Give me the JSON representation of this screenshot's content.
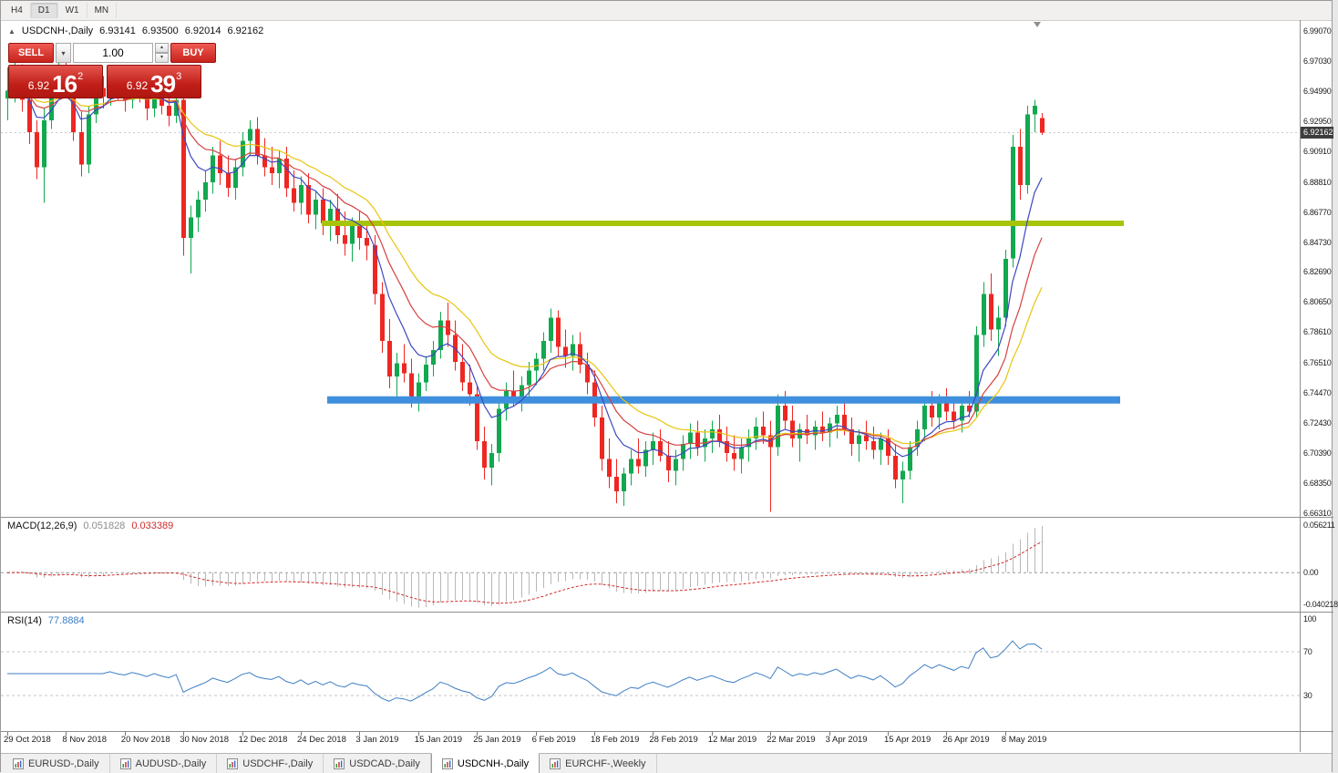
{
  "toolbar": {
    "periods": [
      {
        "label": "H4",
        "active": false
      },
      {
        "label": "D1",
        "active": true
      },
      {
        "label": "W1",
        "active": false
      },
      {
        "label": "MN",
        "active": false
      }
    ]
  },
  "chart_title": {
    "symbol": "USDCNH-,Daily",
    "open": "6.93141",
    "high": "6.93500",
    "low": "6.92014",
    "close": "6.92162"
  },
  "trade_panel": {
    "sell_label": "SELL",
    "buy_label": "BUY",
    "volume": "1.00",
    "bid": {
      "prefix": "6.92",
      "pips": "16",
      "sup": "2"
    },
    "ask": {
      "prefix": "6.92",
      "pips": "39",
      "sup": "3"
    }
  },
  "chart_data": {
    "type": "candlestick",
    "symbol": "USDCNH-",
    "timeframe": "Daily",
    "ylim": [
      6.6606,
      6.9981
    ],
    "y_axis_labels": [
      "6.99070",
      "6.97030",
      "6.94990",
      "6.92950",
      "6.90910",
      "6.88810",
      "6.86770",
      "6.84730",
      "6.82690",
      "6.80650",
      "6.78610",
      "6.76510",
      "6.74470",
      "6.72430",
      "6.70390",
      "6.68350",
      "6.66310"
    ],
    "current_price": 6.92162,
    "current_price_label": "6.92162",
    "x_tick_labels": [
      "29 Oct 2018",
      "8 Nov 2018",
      "20 Nov 2018",
      "30 Nov 2018",
      "12 Dec 2018",
      "24 Dec 2018",
      "3 Jan 2019",
      "15 Jan 2019",
      "25 Jan 2019",
      "6 Feb 2019",
      "18 Feb 2019",
      "28 Feb 2019",
      "12 Mar 2019",
      "22 Mar 2019",
      "3 Apr 2019",
      "15 Apr 2019",
      "26 Apr 2019",
      "8 May 2019"
    ],
    "x_tick_step": 8,
    "colors": {
      "up": "#12a84f",
      "down": "#ee2722",
      "ma_fast": "#3c48c0",
      "ma_mid": "#d64040",
      "ma_slow": "#e8c40e",
      "bid_line": "#c9c9c9"
    },
    "moving_average_periods": {
      "fast": 7,
      "mid": 13,
      "slow": 21
    },
    "hlines": [
      {
        "name": "resistance-hline",
        "price": 6.86,
        "color": "#a8c40a",
        "width": 6,
        "x1": 352,
        "x2": 1232
      },
      {
        "name": "support-hline",
        "price": 6.74,
        "color": "#3e8fdd",
        "width": 8,
        "x1": 358,
        "x2": 1228
      }
    ],
    "ohlc": [
      [
        6.945,
        6.966,
        6.93,
        6.95
      ],
      [
        6.95,
        6.972,
        6.942,
        6.962
      ],
      [
        6.962,
        6.968,
        6.936,
        6.944
      ],
      [
        6.944,
        6.952,
        6.914,
        6.922
      ],
      [
        6.922,
        6.93,
        6.89,
        6.898
      ],
      [
        6.898,
        6.938,
        6.874,
        6.93
      ],
      [
        6.93,
        6.96,
        6.924,
        6.952
      ],
      [
        6.952,
        6.974,
        6.946,
        6.966
      ],
      [
        6.966,
        6.972,
        6.95,
        6.958
      ],
      [
        6.958,
        6.962,
        6.916,
        6.922
      ],
      [
        6.922,
        6.936,
        6.892,
        6.9
      ],
      [
        6.9,
        6.94,
        6.894,
        6.934
      ],
      [
        6.934,
        6.958,
        6.928,
        6.952
      ],
      [
        6.952,
        6.96,
        6.938,
        6.946
      ],
      [
        6.946,
        6.964,
        6.94,
        6.96
      ],
      [
        6.96,
        6.966,
        6.944,
        6.95
      ],
      [
        6.95,
        6.958,
        6.936,
        6.944
      ],
      [
        6.944,
        6.96,
        6.938,
        6.955
      ],
      [
        6.955,
        6.962,
        6.942,
        6.948
      ],
      [
        6.948,
        6.954,
        6.93,
        6.938
      ],
      [
        6.938,
        6.956,
        6.932,
        6.95
      ],
      [
        6.95,
        6.955,
        6.934,
        6.94
      ],
      [
        6.94,
        6.948,
        6.926,
        6.933
      ],
      [
        6.933,
        6.95,
        6.928,
        6.944
      ],
      [
        6.944,
        6.95,
        6.838,
        6.85
      ],
      [
        6.85,
        6.872,
        6.826,
        6.864
      ],
      [
        6.864,
        6.882,
        6.854,
        6.876
      ],
      [
        6.876,
        6.896,
        6.868,
        6.888
      ],
      [
        6.888,
        6.912,
        6.88,
        6.906
      ],
      [
        6.906,
        6.916,
        6.886,
        6.894
      ],
      [
        6.894,
        6.906,
        6.878,
        6.884
      ],
      [
        6.884,
        6.904,
        6.876,
        6.898
      ],
      [
        6.898,
        6.922,
        6.892,
        6.916
      ],
      [
        6.916,
        6.93,
        6.906,
        6.924
      ],
      [
        6.924,
        6.932,
        6.9,
        6.906
      ],
      [
        6.906,
        6.918,
        6.892,
        6.898
      ],
      [
        6.898,
        6.912,
        6.886,
        6.894
      ],
      [
        6.894,
        6.91,
        6.884,
        6.904
      ],
      [
        6.904,
        6.912,
        6.878,
        6.884
      ],
      [
        6.884,
        6.896,
        6.868,
        6.874
      ],
      [
        6.874,
        6.892,
        6.866,
        6.886
      ],
      [
        6.886,
        6.894,
        6.86,
        6.866
      ],
      [
        6.866,
        6.882,
        6.856,
        6.876
      ],
      [
        6.876,
        6.884,
        6.852,
        6.86
      ],
      [
        6.86,
        6.876,
        6.848,
        6.87
      ],
      [
        6.87,
        6.88,
        6.846,
        6.852
      ],
      [
        6.852,
        6.868,
        6.838,
        6.846
      ],
      [
        6.846,
        6.864,
        6.834,
        6.858
      ],
      [
        6.858,
        6.868,
        6.842,
        6.85
      ],
      [
        6.85,
        6.862,
        6.835,
        6.845
      ],
      [
        6.845,
        6.852,
        6.805,
        6.812
      ],
      [
        6.812,
        6.82,
        6.772,
        6.78
      ],
      [
        6.78,
        6.795,
        6.748,
        6.756
      ],
      [
        6.756,
        6.772,
        6.738,
        6.765
      ],
      [
        6.765,
        6.778,
        6.752,
        6.758
      ],
      [
        6.758,
        6.768,
        6.735,
        6.742
      ],
      [
        6.742,
        6.758,
        6.732,
        6.752
      ],
      [
        6.752,
        6.77,
        6.746,
        6.764
      ],
      [
        6.764,
        6.78,
        6.756,
        6.774
      ],
      [
        6.774,
        6.8,
        6.768,
        6.794
      ],
      [
        6.794,
        6.806,
        6.776,
        6.784
      ],
      [
        6.784,
        6.794,
        6.76,
        6.766
      ],
      [
        6.766,
        6.778,
        6.746,
        6.752
      ],
      [
        6.752,
        6.764,
        6.736,
        6.744
      ],
      [
        6.744,
        6.75,
        6.706,
        6.712
      ],
      [
        6.712,
        6.722,
        6.686,
        6.694
      ],
      [
        6.694,
        6.71,
        6.682,
        6.704
      ],
      [
        6.704,
        6.74,
        6.698,
        6.734
      ],
      [
        6.734,
        6.752,
        6.726,
        6.746
      ],
      [
        6.746,
        6.76,
        6.736,
        6.742
      ],
      [
        6.742,
        6.756,
        6.732,
        6.75
      ],
      [
        6.75,
        6.766,
        6.742,
        6.76
      ],
      [
        6.76,
        6.772,
        6.75,
        6.768
      ],
      [
        6.768,
        6.786,
        6.76,
        6.78
      ],
      [
        6.78,
        6.802,
        6.772,
        6.796
      ],
      [
        6.796,
        6.801,
        6.77,
        6.776
      ],
      [
        6.776,
        6.788,
        6.762,
        6.77
      ],
      [
        6.77,
        6.784,
        6.76,
        6.778
      ],
      [
        6.778,
        6.786,
        6.758,
        6.764
      ],
      [
        6.764,
        6.772,
        6.744,
        6.752
      ],
      [
        6.752,
        6.76,
        6.722,
        6.728
      ],
      [
        6.728,
        6.736,
        6.692,
        6.7
      ],
      [
        6.7,
        6.714,
        6.68,
        6.688
      ],
      [
        6.688,
        6.7,
        6.67,
        6.678
      ],
      [
        6.678,
        6.694,
        6.668,
        6.69
      ],
      [
        6.69,
        6.706,
        6.682,
        6.7
      ],
      [
        6.7,
        6.714,
        6.69,
        6.695
      ],
      [
        6.695,
        6.712,
        6.688,
        6.706
      ],
      [
        6.706,
        6.718,
        6.696,
        6.712
      ],
      [
        6.712,
        6.72,
        6.698,
        6.702
      ],
      [
        6.702,
        6.712,
        6.684,
        6.692
      ],
      [
        6.692,
        6.706,
        6.682,
        6.7
      ],
      [
        6.7,
        6.716,
        6.692,
        6.71
      ],
      [
        6.71,
        6.724,
        6.7,
        6.718
      ],
      [
        6.718,
        6.726,
        6.702,
        6.708
      ],
      [
        6.708,
        6.72,
        6.698,
        6.714
      ],
      [
        6.714,
        6.726,
        6.704,
        6.72
      ],
      [
        6.72,
        6.73,
        6.708,
        6.712
      ],
      [
        6.712,
        6.722,
        6.698,
        6.704
      ],
      [
        6.704,
        6.716,
        6.692,
        6.7
      ],
      [
        6.7,
        6.714,
        6.69,
        6.708
      ],
      [
        6.708,
        6.72,
        6.698,
        6.714
      ],
      [
        6.714,
        6.728,
        6.706,
        6.722
      ],
      [
        6.722,
        6.732,
        6.71,
        6.716
      ],
      [
        6.716,
        6.726,
        6.664,
        6.708
      ],
      [
        6.708,
        6.744,
        6.702,
        6.736
      ],
      [
        6.736,
        6.746,
        6.72,
        6.726
      ],
      [
        6.726,
        6.736,
        6.708,
        6.714
      ],
      [
        6.714,
        6.724,
        6.698,
        6.72
      ],
      [
        6.72,
        6.73,
        6.71,
        6.716
      ],
      [
        6.716,
        6.726,
        6.706,
        6.722
      ],
      [
        6.722,
        6.732,
        6.712,
        6.718
      ],
      [
        6.718,
        6.728,
        6.708,
        6.724
      ],
      [
        6.724,
        6.736,
        6.714,
        6.73
      ],
      [
        6.73,
        6.738,
        6.716,
        6.72
      ],
      [
        6.72,
        6.728,
        6.702,
        6.71
      ],
      [
        6.71,
        6.72,
        6.698,
        6.716
      ],
      [
        6.716,
        6.726,
        6.706,
        6.712
      ],
      [
        6.712,
        6.722,
        6.7,
        6.706
      ],
      [
        6.706,
        6.718,
        6.696,
        6.714
      ],
      [
        6.714,
        6.72,
        6.696,
        6.702
      ],
      [
        6.702,
        6.71,
        6.68,
        6.686
      ],
      [
        6.686,
        6.698,
        6.67,
        6.692
      ],
      [
        6.692,
        6.712,
        6.686,
        6.708
      ],
      [
        6.708,
        6.726,
        6.702,
        6.72
      ],
      [
        6.72,
        6.74,
        6.712,
        6.736
      ],
      [
        6.736,
        6.746,
        6.722,
        6.728
      ],
      [
        6.728,
        6.744,
        6.72,
        6.738
      ],
      [
        6.738,
        6.748,
        6.726,
        6.732
      ],
      [
        6.732,
        6.742,
        6.72,
        6.726
      ],
      [
        6.726,
        6.74,
        6.718,
        6.736
      ],
      [
        6.736,
        6.746,
        6.728,
        6.732
      ],
      [
        6.732,
        6.79,
        6.728,
        6.784
      ],
      [
        6.784,
        6.82,
        6.776,
        6.812
      ],
      [
        6.812,
        6.826,
        6.78,
        6.788
      ],
      [
        6.788,
        6.804,
        6.77,
        6.796
      ],
      [
        6.796,
        6.842,
        6.79,
        6.836
      ],
      [
        6.836,
        6.92,
        6.83,
        6.912
      ],
      [
        6.912,
        6.924,
        6.876,
        6.886
      ],
      [
        6.886,
        6.94,
        6.88,
        6.934
      ],
      [
        6.934,
        6.944,
        6.922,
        6.94
      ],
      [
        6.93141,
        6.935,
        6.92014,
        6.92162
      ]
    ]
  },
  "macd": {
    "label": "MACD(12,26,9)",
    "value_main": "0.051828",
    "value_signal": "0.033389",
    "fast": 12,
    "slow": 26,
    "signal": 9,
    "scale_max": 0.056211,
    "scale_min": -0.040218,
    "axis_labels": [
      "0.056211",
      "0.00",
      "-0.040218"
    ],
    "colors": {
      "hist": "#b8b8b8",
      "signal": "#cf2a2a"
    }
  },
  "rsi": {
    "label": "RSI(14)",
    "value": "77.8884",
    "period": 14,
    "axis_labels": [
      "100",
      "70",
      "30"
    ],
    "levels": [
      100,
      70,
      30
    ],
    "level_lines": [
      70,
      30
    ],
    "color": "#3f7ec4"
  },
  "tabs": [
    {
      "label": "EURUSD-,Daily",
      "active": false
    },
    {
      "label": "AUDUSD-,Daily",
      "active": false
    },
    {
      "label": "USDCHF-,Daily",
      "active": false
    },
    {
      "label": "USDCAD-,Daily",
      "active": false
    },
    {
      "label": "USDCNH-,Daily",
      "active": true
    },
    {
      "label": "EURCHF-,Weekly",
      "active": false
    }
  ]
}
